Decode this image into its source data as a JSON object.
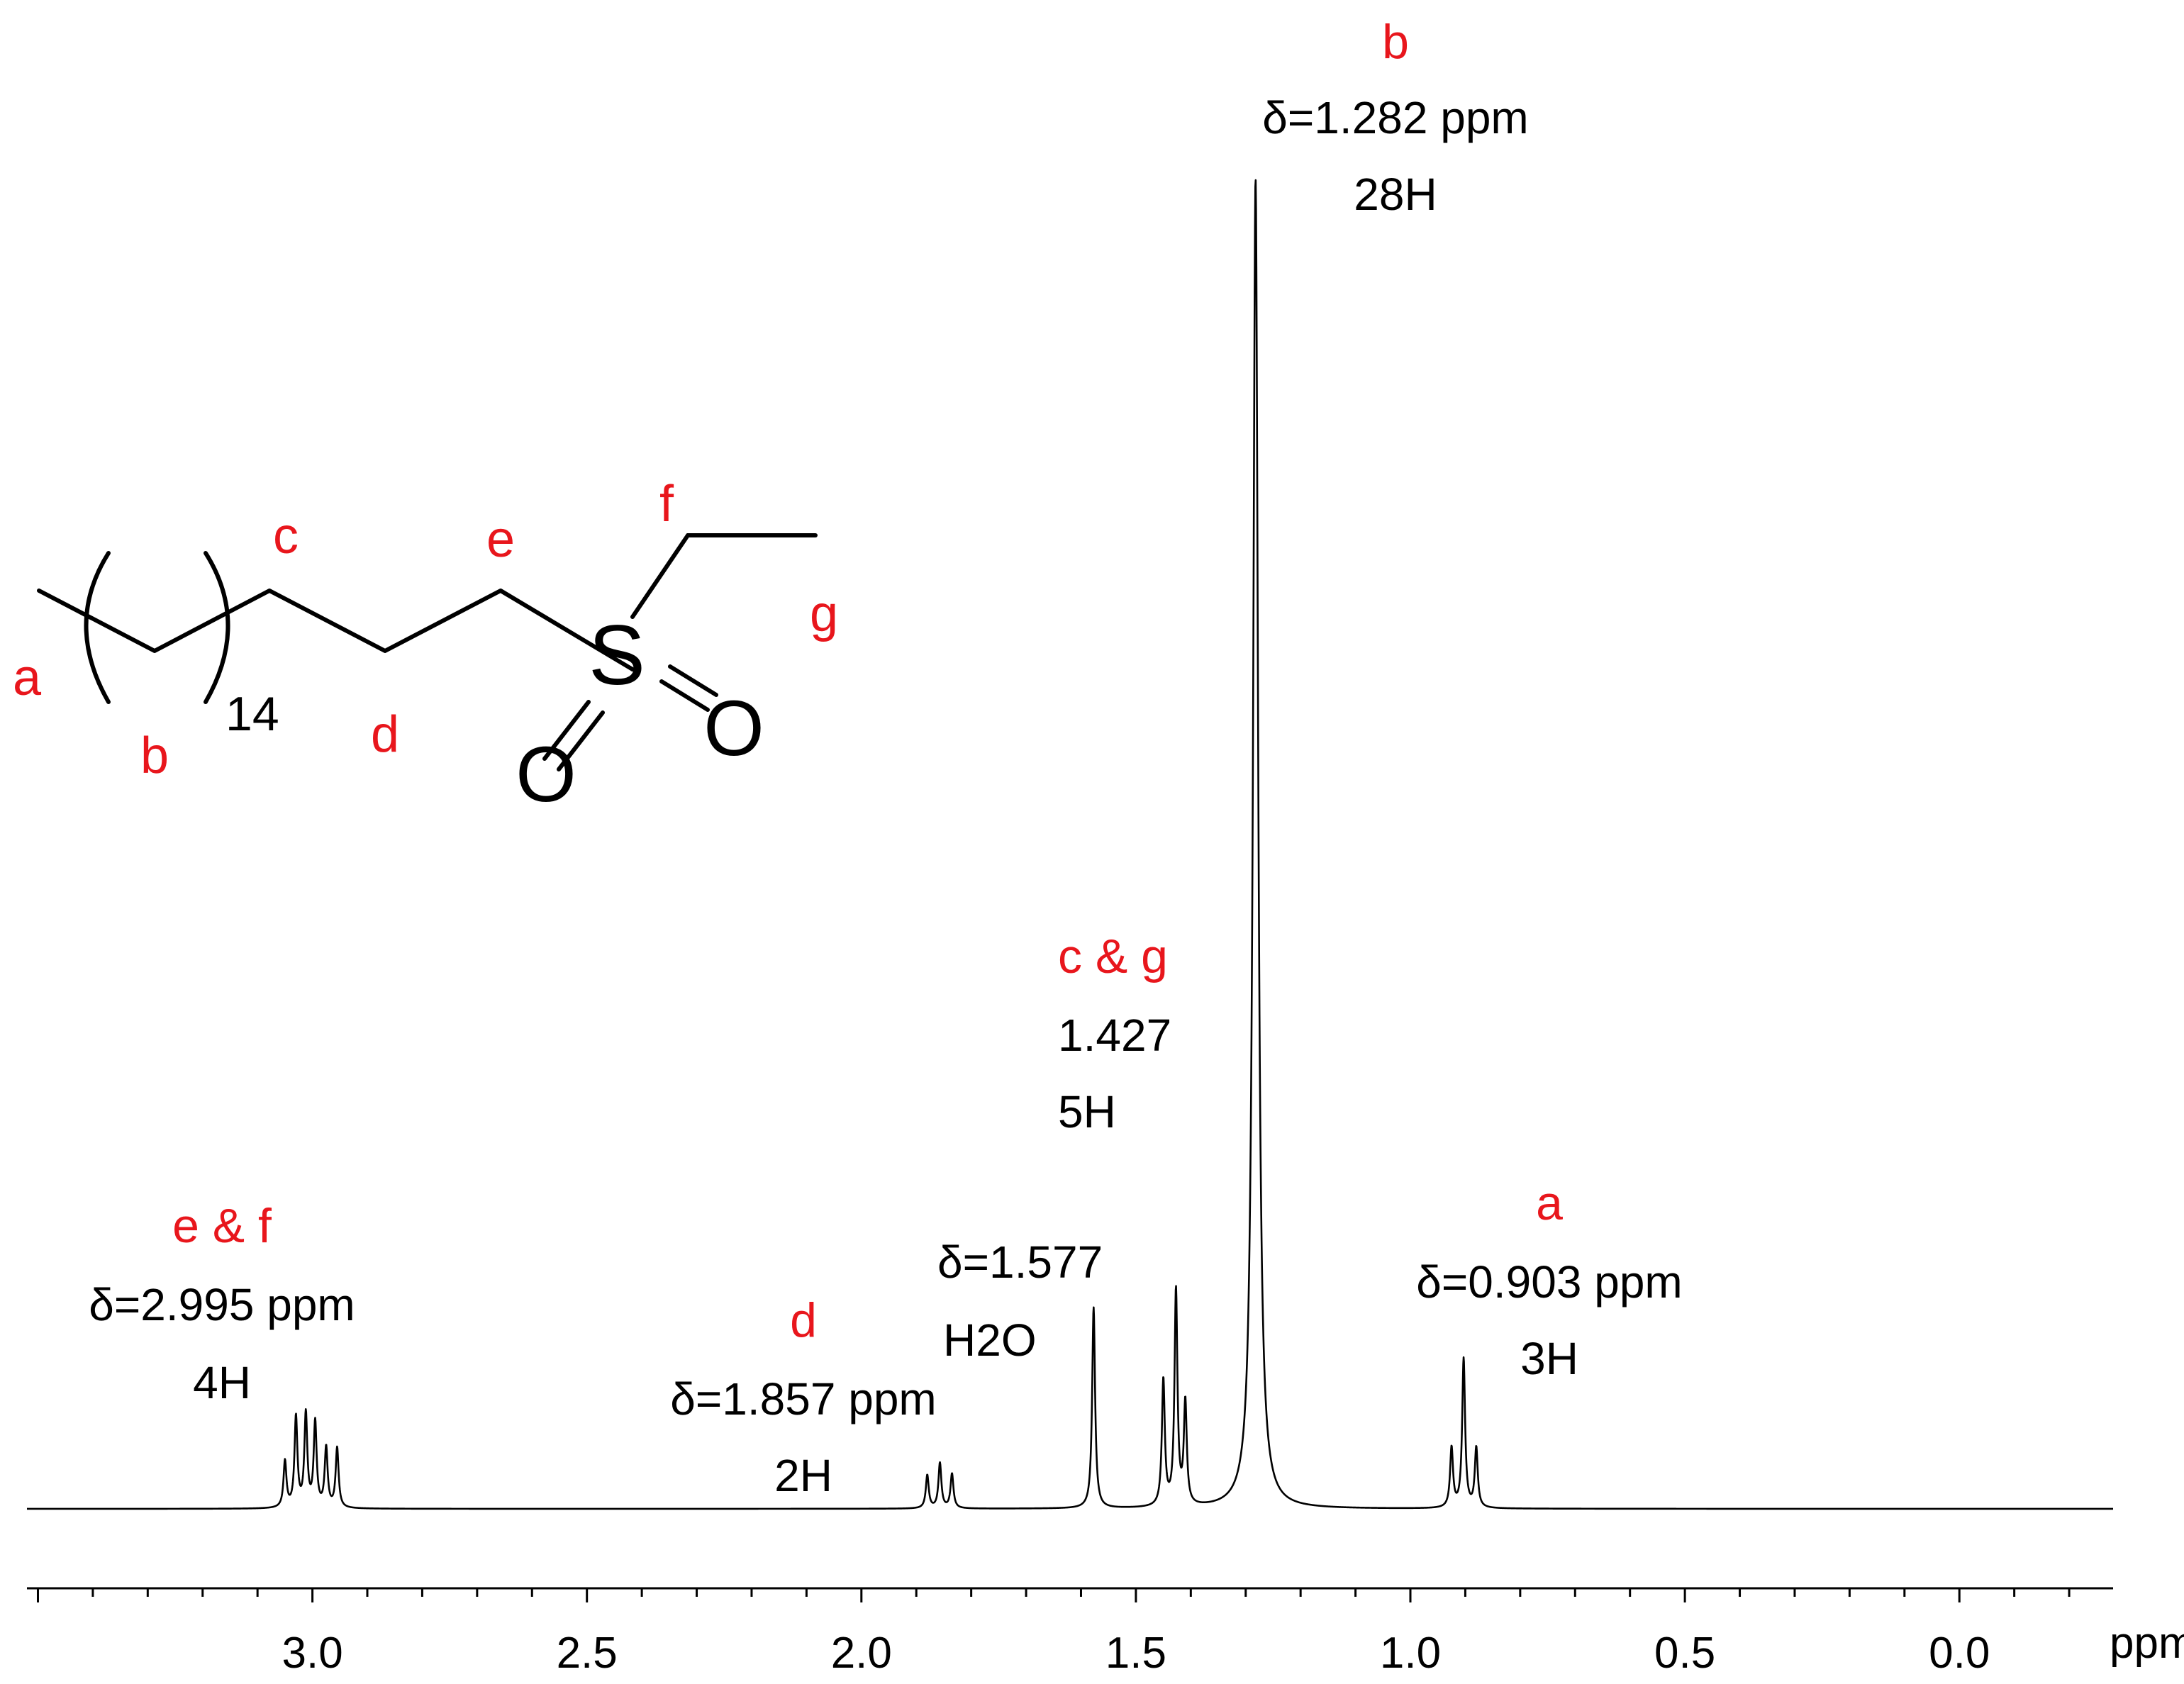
{
  "chart_data": {
    "type": "line",
    "title": "",
    "xlabel": "ppm",
    "ylabel": "",
    "xlim": [
      3.52,
      -0.28
    ],
    "x_reversed": true,
    "ylim": [
      0,
      1
    ],
    "grid": false,
    "x_ticks": [
      3.0,
      2.5,
      2.0,
      1.5,
      1.0,
      0.5,
      0.0
    ],
    "x_tick_labels": [
      "3.0",
      "2.5",
      "2.0",
      "1.5",
      "1.0",
      "0.5",
      "0.0"
    ],
    "peaks": [
      {
        "shift": 1.282,
        "relative_height": 1.0
      },
      {
        "shift": 1.577,
        "relative_height": 0.151
      },
      {
        "shift": 1.427,
        "relative_height": 0.162
      },
      {
        "shift": 1.45,
        "relative_height": 0.095
      },
      {
        "shift": 1.41,
        "relative_height": 0.077
      },
      {
        "shift": 0.903,
        "relative_height": 0.112
      },
      {
        "shift": 0.925,
        "relative_height": 0.045
      },
      {
        "shift": 0.88,
        "relative_height": 0.045
      },
      {
        "shift": 3.012,
        "relative_height": 0.07
      },
      {
        "shift": 2.995,
        "relative_height": 0.064
      },
      {
        "shift": 3.03,
        "relative_height": 0.068
      },
      {
        "shift": 2.975,
        "relative_height": 0.045
      },
      {
        "shift": 2.955,
        "relative_height": 0.045
      },
      {
        "shift": 3.05,
        "relative_height": 0.035
      },
      {
        "shift": 1.857,
        "relative_height": 0.034
      },
      {
        "shift": 1.88,
        "relative_height": 0.025
      },
      {
        "shift": 1.835,
        "relative_height": 0.026
      }
    ],
    "annotations": [
      {
        "group": "b",
        "lines": [
          "δ=1.282 ppm",
          "28H"
        ]
      },
      {
        "group": "c & g",
        "lines": [
          "1.427",
          "5H"
        ]
      },
      {
        "group": "",
        "lines": [
          "δ=1.577",
          "H2O"
        ]
      },
      {
        "group": "a",
        "lines": [
          "δ=0.903 ppm",
          "3H"
        ]
      },
      {
        "group": "e & f",
        "lines": [
          "δ=2.995 ppm",
          "4H"
        ]
      },
      {
        "group": "d",
        "lines": [
          "δ=1.857 ppm",
          "2H"
        ]
      }
    ]
  },
  "structure": {
    "labels": {
      "a": "a",
      "b": "b",
      "c": "c",
      "d": "d",
      "e": "e",
      "f": "f",
      "g": "g"
    },
    "repeat_subscript": "14",
    "sulfur": "S",
    "oxygen1": "O",
    "oxygen2": "O"
  },
  "colors": {
    "label_red": "#e8161c",
    "text_black": "#000000",
    "line_black": "#000000"
  }
}
